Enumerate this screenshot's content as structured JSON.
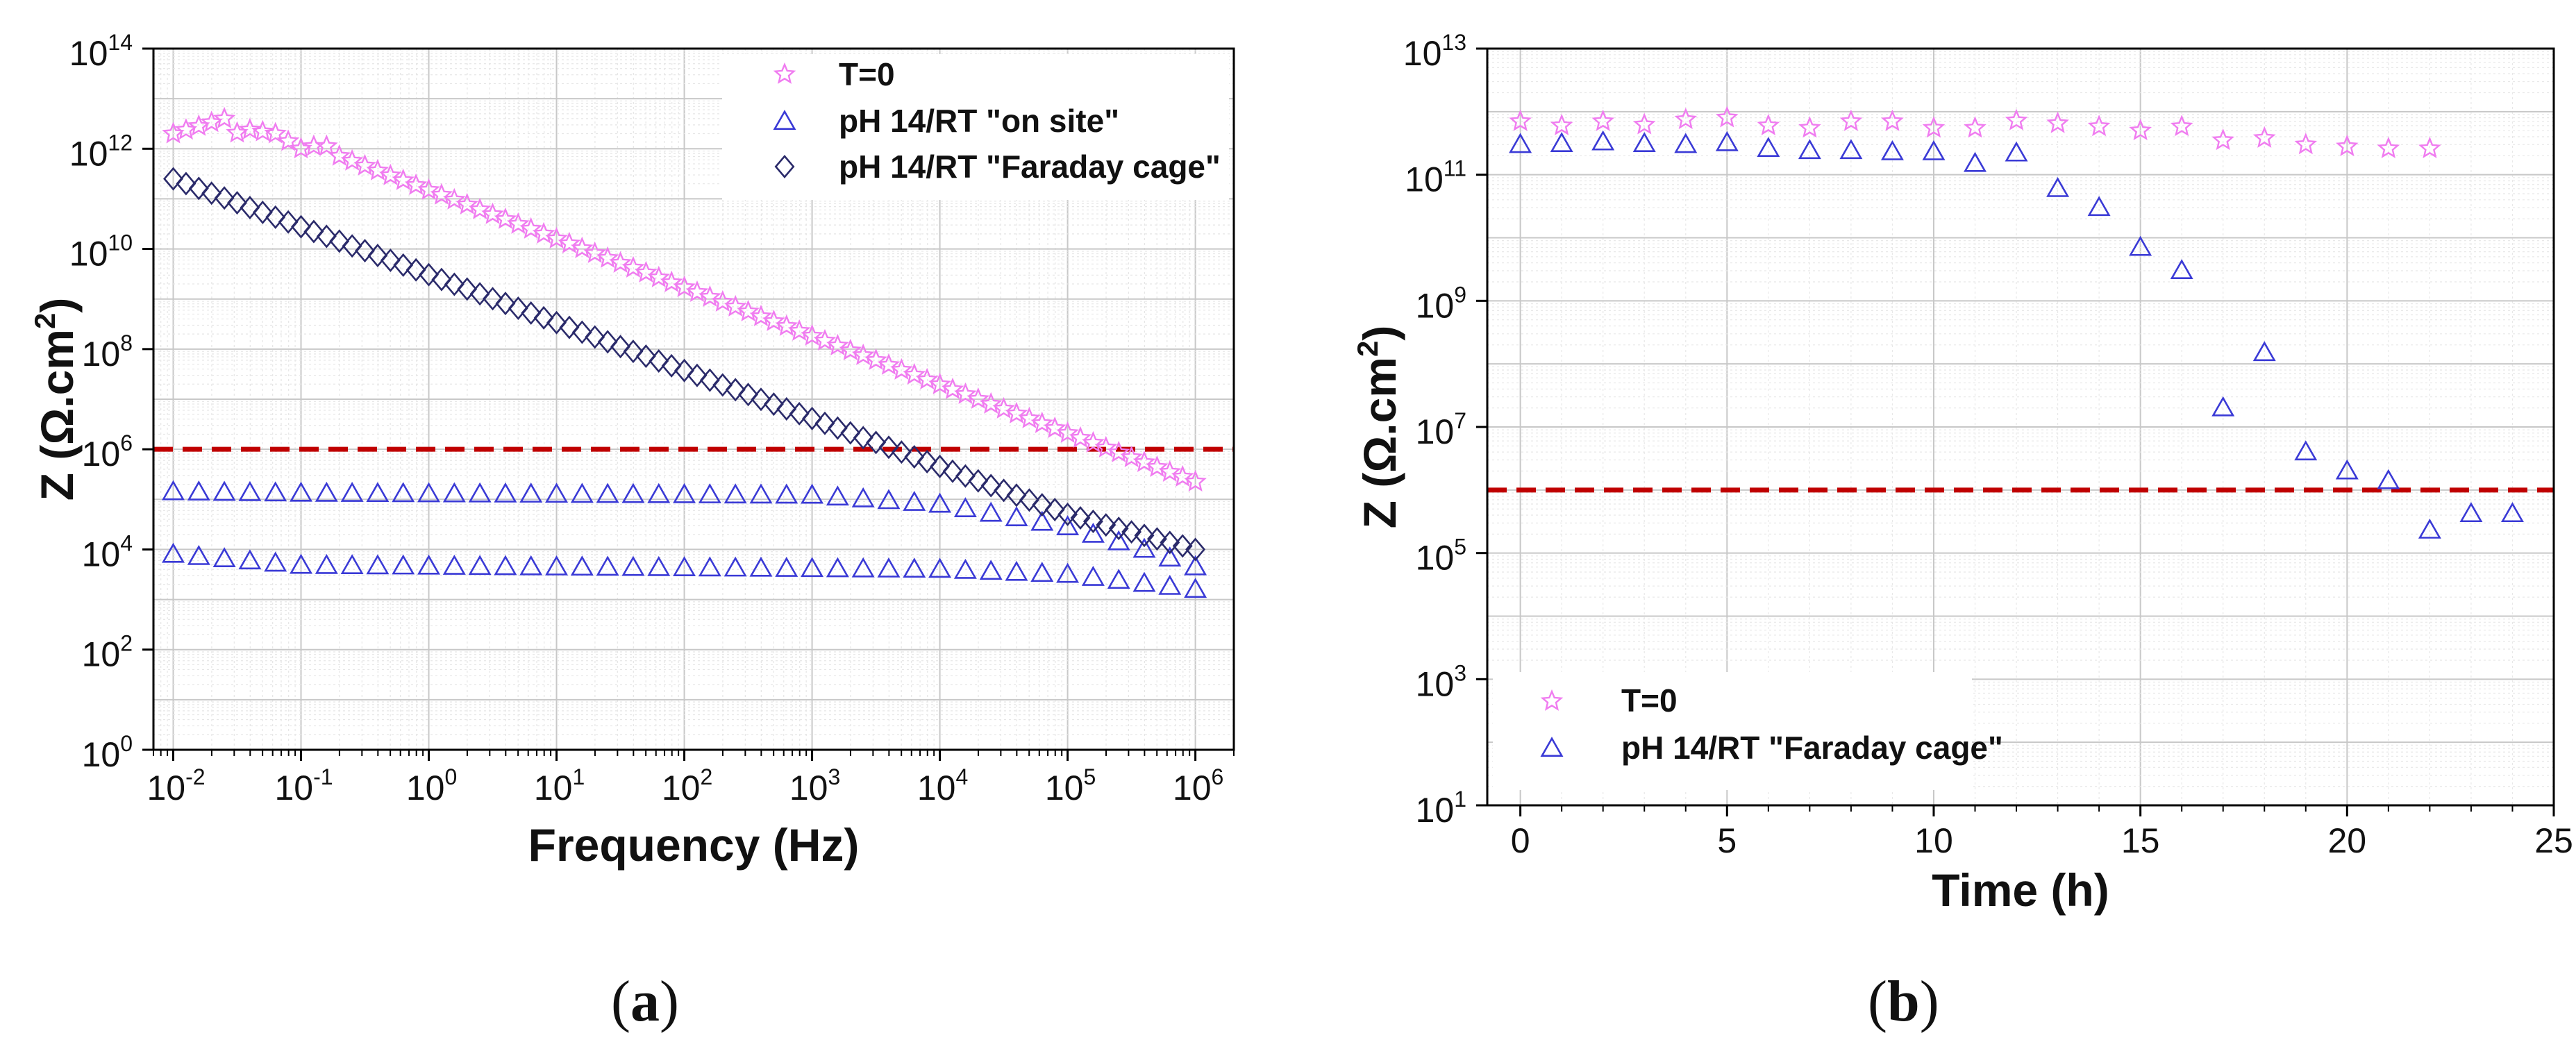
{
  "figure": {
    "caption_a": {
      "open": "(",
      "letter": "a",
      "close": ")"
    },
    "caption_b": {
      "open": "(",
      "letter": "b",
      "close": ")"
    }
  },
  "colors": {
    "t0": "#f07cf0",
    "on_site": "#3a3ad6",
    "faraday_a": "#2a2a6a",
    "faraday_b": "#3a3ad6",
    "threshold": "#c00000"
  },
  "chart_data": [
    {
      "id": "a",
      "type": "scatter",
      "xscale": "log",
      "yscale": "log",
      "xlim": [
        0.007,
        2000000
      ],
      "ylim": [
        1,
        100000000000000
      ],
      "xticks": [
        {
          "v": 0.01,
          "base": "10",
          "exp": "-2"
        },
        {
          "v": 0.1,
          "base": "10",
          "exp": "-1"
        },
        {
          "v": 1,
          "base": "10",
          "exp": "0"
        },
        {
          "v": 10,
          "base": "10",
          "exp": "1"
        },
        {
          "v": 100,
          "base": "10",
          "exp": "2"
        },
        {
          "v": 1000,
          "base": "10",
          "exp": "3"
        },
        {
          "v": 10000,
          "base": "10",
          "exp": "4"
        },
        {
          "v": 100000,
          "base": "10",
          "exp": "5"
        },
        {
          "v": 1000000,
          "base": "10",
          "exp": "6"
        }
      ],
      "yticks": [
        {
          "v": 1,
          "base": "10",
          "exp": "0"
        },
        {
          "v": 100,
          "base": "10",
          "exp": "2"
        },
        {
          "v": 10000,
          "base": "10",
          "exp": "4"
        },
        {
          "v": 1000000,
          "base": "10",
          "exp": "6"
        },
        {
          "v": 100000000,
          "base": "10",
          "exp": "8"
        },
        {
          "v": 10000000000,
          "base": "10",
          "exp": "10"
        },
        {
          "v": 1000000000000,
          "base": "10",
          "exp": "12"
        },
        {
          "v": 100000000000000,
          "base": "10",
          "exp": "14"
        }
      ],
      "xlabel": "Frequency (Hz)",
      "ylabel_main": "Z (Ω.cm",
      "ylabel_sup": "2",
      "ylabel_end": ")",
      "threshold": 1000000,
      "legend_position": "top-right",
      "series": [
        {
          "name": "T=0",
          "marker": "star",
          "color": "#f07cf0",
          "generator": {
            "kind": "piecewise",
            "log_fmin": -2,
            "log_fmax": 6,
            "points_per_decade": 10,
            "segments": [
              {
                "from": -2.0,
                "to": -1.6,
                "logz_from": 12.3,
                "logz_to": 12.6
              },
              {
                "from": -1.6,
                "to": -1.4,
                "logz_from": 12.25,
                "logz_to": 12.38
              },
              {
                "from": -1.4,
                "to": -1.2,
                "logz_from": 12.38,
                "logz_to": 12.3
              },
              {
                "from": -1.2,
                "to": -1.0,
                "logz_from": 12.3,
                "logz_to": 12.0
              },
              {
                "from": -1.0,
                "to": -0.8,
                "logz_from": 12.05,
                "logz_to": 12.05
              },
              {
                "from": -0.8,
                "to": 6.0,
                "logz_from": 11.95,
                "logz_to": 5.35
              }
            ]
          }
        },
        {
          "name": "pH 14/RT \"on site\"",
          "marker": "triangle",
          "color": "#3a3ad6",
          "generator": {
            "kind": "piecewise",
            "log_fmin": -2,
            "log_fmax": 6,
            "points_per_decade": 5,
            "segments": [
              {
                "from": -2.0,
                "to": -1.0,
                "logz_from": 5.15,
                "logz_to": 5.12
              },
              {
                "from": -1.0,
                "to": 3.0,
                "logz_from": 5.12,
                "logz_to": 5.08
              },
              {
                "from": 3.0,
                "to": 4.0,
                "logz_from": 5.08,
                "logz_to": 4.9
              },
              {
                "from": 4.0,
                "to": 5.0,
                "logz_from": 4.9,
                "logz_to": 4.45
              },
              {
                "from": 5.0,
                "to": 5.6,
                "logz_from": 4.45,
                "logz_to": 4.0
              },
              {
                "from": 5.6,
                "to": 6.0,
                "logz_from": 4.0,
                "logz_to": 3.65
              }
            ]
          }
        },
        {
          "name": "pH 14/RT (lower curve)",
          "marker": "triangle",
          "color": "#3a3ad6",
          "legend": false,
          "generator": {
            "kind": "piecewise",
            "log_fmin": -2,
            "log_fmax": 6,
            "points_per_decade": 5,
            "segments": [
              {
                "from": -2.0,
                "to": -1.0,
                "logz_from": 3.9,
                "logz_to": 3.68
              },
              {
                "from": -1.0,
                "to": 4.0,
                "logz_from": 3.68,
                "logz_to": 3.6
              },
              {
                "from": 4.0,
                "to": 5.0,
                "logz_from": 3.6,
                "logz_to": 3.5
              },
              {
                "from": 5.0,
                "to": 6.0,
                "logz_from": 3.5,
                "logz_to": 3.2
              }
            ]
          }
        },
        {
          "name": "pH 14/RT \"Faraday cage\"",
          "marker": "diamond",
          "color": "#2a2a6a",
          "generator": {
            "kind": "piecewise",
            "log_fmin": -2,
            "log_fmax": 6,
            "points_per_decade": 10,
            "segments": [
              {
                "from": -2.0,
                "to": 5.0,
                "logz_from": 11.4,
                "logz_to": 4.7
              },
              {
                "from": 5.0,
                "to": 6.0,
                "logz_from": 4.7,
                "logz_to": 4.0
              }
            ]
          }
        }
      ]
    },
    {
      "id": "b",
      "type": "scatter",
      "xscale": "linear",
      "yscale": "log",
      "xlim": [
        -0.8,
        25
      ],
      "ylim": [
        10,
        10000000000000
      ],
      "xticks": [
        {
          "v": 0,
          "label": "0"
        },
        {
          "v": 5,
          "label": "5"
        },
        {
          "v": 10,
          "label": "10"
        },
        {
          "v": 15,
          "label": "15"
        },
        {
          "v": 20,
          "label": "20"
        },
        {
          "v": 25,
          "label": "25"
        }
      ],
      "yticks": [
        {
          "v": 10,
          "base": "10",
          "exp": "1"
        },
        {
          "v": 1000,
          "base": "10",
          "exp": "3"
        },
        {
          "v": 100000,
          "base": "10",
          "exp": "5"
        },
        {
          "v": 10000000,
          "base": "10",
          "exp": "7"
        },
        {
          "v": 1000000000,
          "base": "10",
          "exp": "9"
        },
        {
          "v": 100000000000,
          "base": "10",
          "exp": "11"
        },
        {
          "v": 10000000000000,
          "base": "10",
          "exp": "13"
        }
      ],
      "xlabel": "Time (h)",
      "ylabel_main": "Z (Ω.cm",
      "ylabel_sup": "2",
      "ylabel_end": ")",
      "threshold": 1000000,
      "legend_position": "bottom-left",
      "series": [
        {
          "name": "T=0",
          "marker": "star",
          "color": "#f07cf0",
          "x": [
            0,
            1,
            2,
            3,
            4,
            5,
            6,
            7,
            8,
            9,
            10,
            11,
            12,
            13,
            14,
            15,
            16,
            17,
            18,
            19,
            20,
            21,
            22
          ],
          "y": [
            700000000000,
            600000000000,
            700000000000,
            620000000000,
            750000000000,
            800000000000,
            600000000000,
            550000000000,
            700000000000,
            700000000000,
            550000000000,
            550000000000,
            720000000000,
            650000000000,
            580000000000,
            500000000000,
            580000000000,
            350000000000,
            380000000000,
            300000000000,
            280000000000,
            260000000000,
            260000000000
          ]
        },
        {
          "name": "pH 14/RT \"Faraday cage\"",
          "marker": "triangle",
          "color": "#3a3ad6",
          "x": [
            0,
            1,
            2,
            3,
            4,
            5,
            6,
            7,
            8,
            9,
            10,
            11,
            12,
            13,
            14,
            15,
            16,
            17,
            18,
            19,
            20,
            21,
            22,
            23,
            24
          ],
          "y": [
            300000000000,
            310000000000,
            330000000000,
            310000000000,
            300000000000,
            320000000000,
            260000000000,
            240000000000,
            240000000000,
            230000000000,
            230000000000,
            150000000000,
            220000000000,
            60000000000,
            30000000000,
            7000000000,
            3000000000,
            20000000,
            150000000,
            4000000,
            2000000,
            1400000,
            230000,
            420000,
            420000
          ]
        }
      ]
    }
  ]
}
